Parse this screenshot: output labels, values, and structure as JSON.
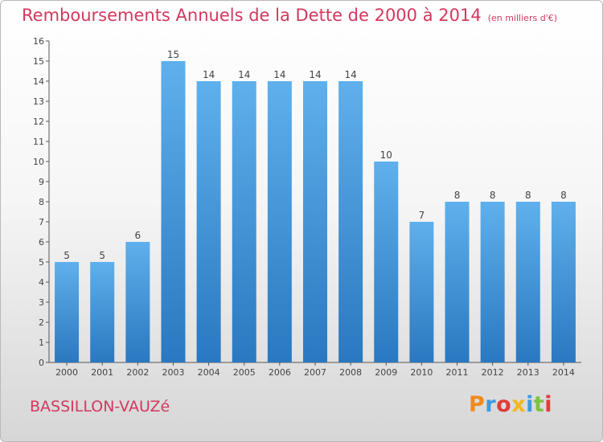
{
  "title": "Remboursements Annuels de la Dette de 2000 à 2014",
  "unit_note": "(en milliers d'€)",
  "commune": "BASSILLON-VAUZé",
  "brand": {
    "text": "Proxiti",
    "colors": [
      "#f08a1c",
      "#3a9be0",
      "#e23a3a",
      "#f2b81f",
      "#3a9be0",
      "#7cc242",
      "#e23a3a"
    ]
  },
  "colors": {
    "accent": "#d2385e",
    "bar_top": "#5fb0ec",
    "bar_bottom": "#2a78c0"
  },
  "chart_data": {
    "type": "bar",
    "title": "Remboursements Annuels de la Dette de 2000 à 2014",
    "xlabel": "",
    "ylabel": "",
    "categories": [
      "2000",
      "2001",
      "2002",
      "2003",
      "2004",
      "2005",
      "2006",
      "2007",
      "2008",
      "2009",
      "2010",
      "2011",
      "2012",
      "2013",
      "2014"
    ],
    "values": [
      5,
      5,
      6,
      15,
      14,
      14,
      14,
      14,
      14,
      10,
      7,
      8,
      8,
      8,
      8
    ],
    "ylim": [
      0,
      16
    ],
    "yticks": [
      "0",
      "1",
      "2",
      "3",
      "4",
      "5",
      "6",
      "7",
      "8",
      "9",
      "10",
      "11",
      "12",
      "13",
      "14",
      "15",
      "16"
    ],
    "grid": false,
    "legend": "none"
  }
}
